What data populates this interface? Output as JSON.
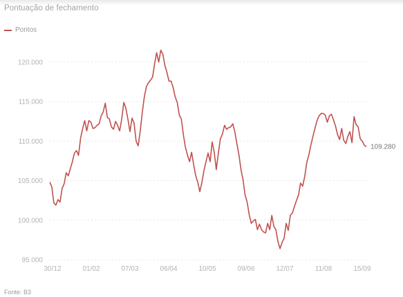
{
  "subtitle": "Pontuação de fechamento",
  "source": "Fonte: B3",
  "colors": {
    "line": "#c0504d",
    "grid": "#e6e6e6",
    "tick": "#b2b2b2"
  },
  "chart_data": {
    "type": "line",
    "title": "",
    "subtitle": "Pontuação de fechamento",
    "xlabel": "",
    "ylabel": "",
    "ylim": [
      95000,
      122000
    ],
    "yticks": [
      95000,
      100000,
      105000,
      110000,
      115000,
      120000
    ],
    "ytick_labels": [
      "95.000",
      "100.000",
      "105.000",
      "110.000",
      "115.000",
      "120.000"
    ],
    "xtick_labels": [
      "30/12",
      "01/02",
      "07/03",
      "06/04",
      "10/05",
      "09/06",
      "12/07",
      "11/08",
      "15/09"
    ],
    "grid": true,
    "legend": "top-left",
    "end_label": "109.280",
    "series": [
      {
        "name": "Pontos",
        "values": [
          104800,
          104200,
          102200,
          101900,
          102600,
          102300,
          104000,
          104600,
          106000,
          105600,
          106500,
          107400,
          108500,
          108800,
          108200,
          110400,
          111600,
          112600,
          111300,
          112600,
          112400,
          111600,
          111700,
          112000,
          112200,
          113200,
          113700,
          114800,
          113000,
          112800,
          111800,
          111500,
          112500,
          112000,
          111300,
          112800,
          114900,
          114200,
          112800,
          111200,
          112900,
          112300,
          110000,
          109400,
          111300,
          113600,
          115600,
          116900,
          117400,
          117700,
          118100,
          119800,
          121200,
          120000,
          121500,
          121000,
          119600,
          118700,
          117600,
          117600,
          116800,
          115600,
          114900,
          113300,
          112800,
          110800,
          109200,
          108200,
          107400,
          108600,
          107000,
          105600,
          104800,
          103600,
          104800,
          106300,
          107400,
          108500,
          107400,
          109900,
          108600,
          106400,
          108500,
          110300,
          110900,
          112000,
          111500,
          111700,
          111800,
          112200,
          111200,
          109700,
          108300,
          106400,
          105100,
          103200,
          102300,
          100700,
          99600,
          99900,
          100100,
          98800,
          99500,
          98800,
          98500,
          98400,
          99600,
          98800,
          100600,
          99200,
          98800,
          97300,
          96400,
          97200,
          97700,
          99600,
          98700,
          100600,
          100900,
          101700,
          102500,
          103200,
          104700,
          104300,
          105500,
          107300,
          108200,
          109500,
          110600,
          111600,
          112600,
          113200,
          113500,
          113500,
          113300,
          112400,
          113200,
          113400,
          112700,
          111900,
          110800,
          110200,
          111600,
          110100,
          109700,
          110600,
          111200,
          109800,
          113100,
          112100,
          111800,
          110300,
          110000,
          109500,
          109280
        ]
      }
    ]
  }
}
